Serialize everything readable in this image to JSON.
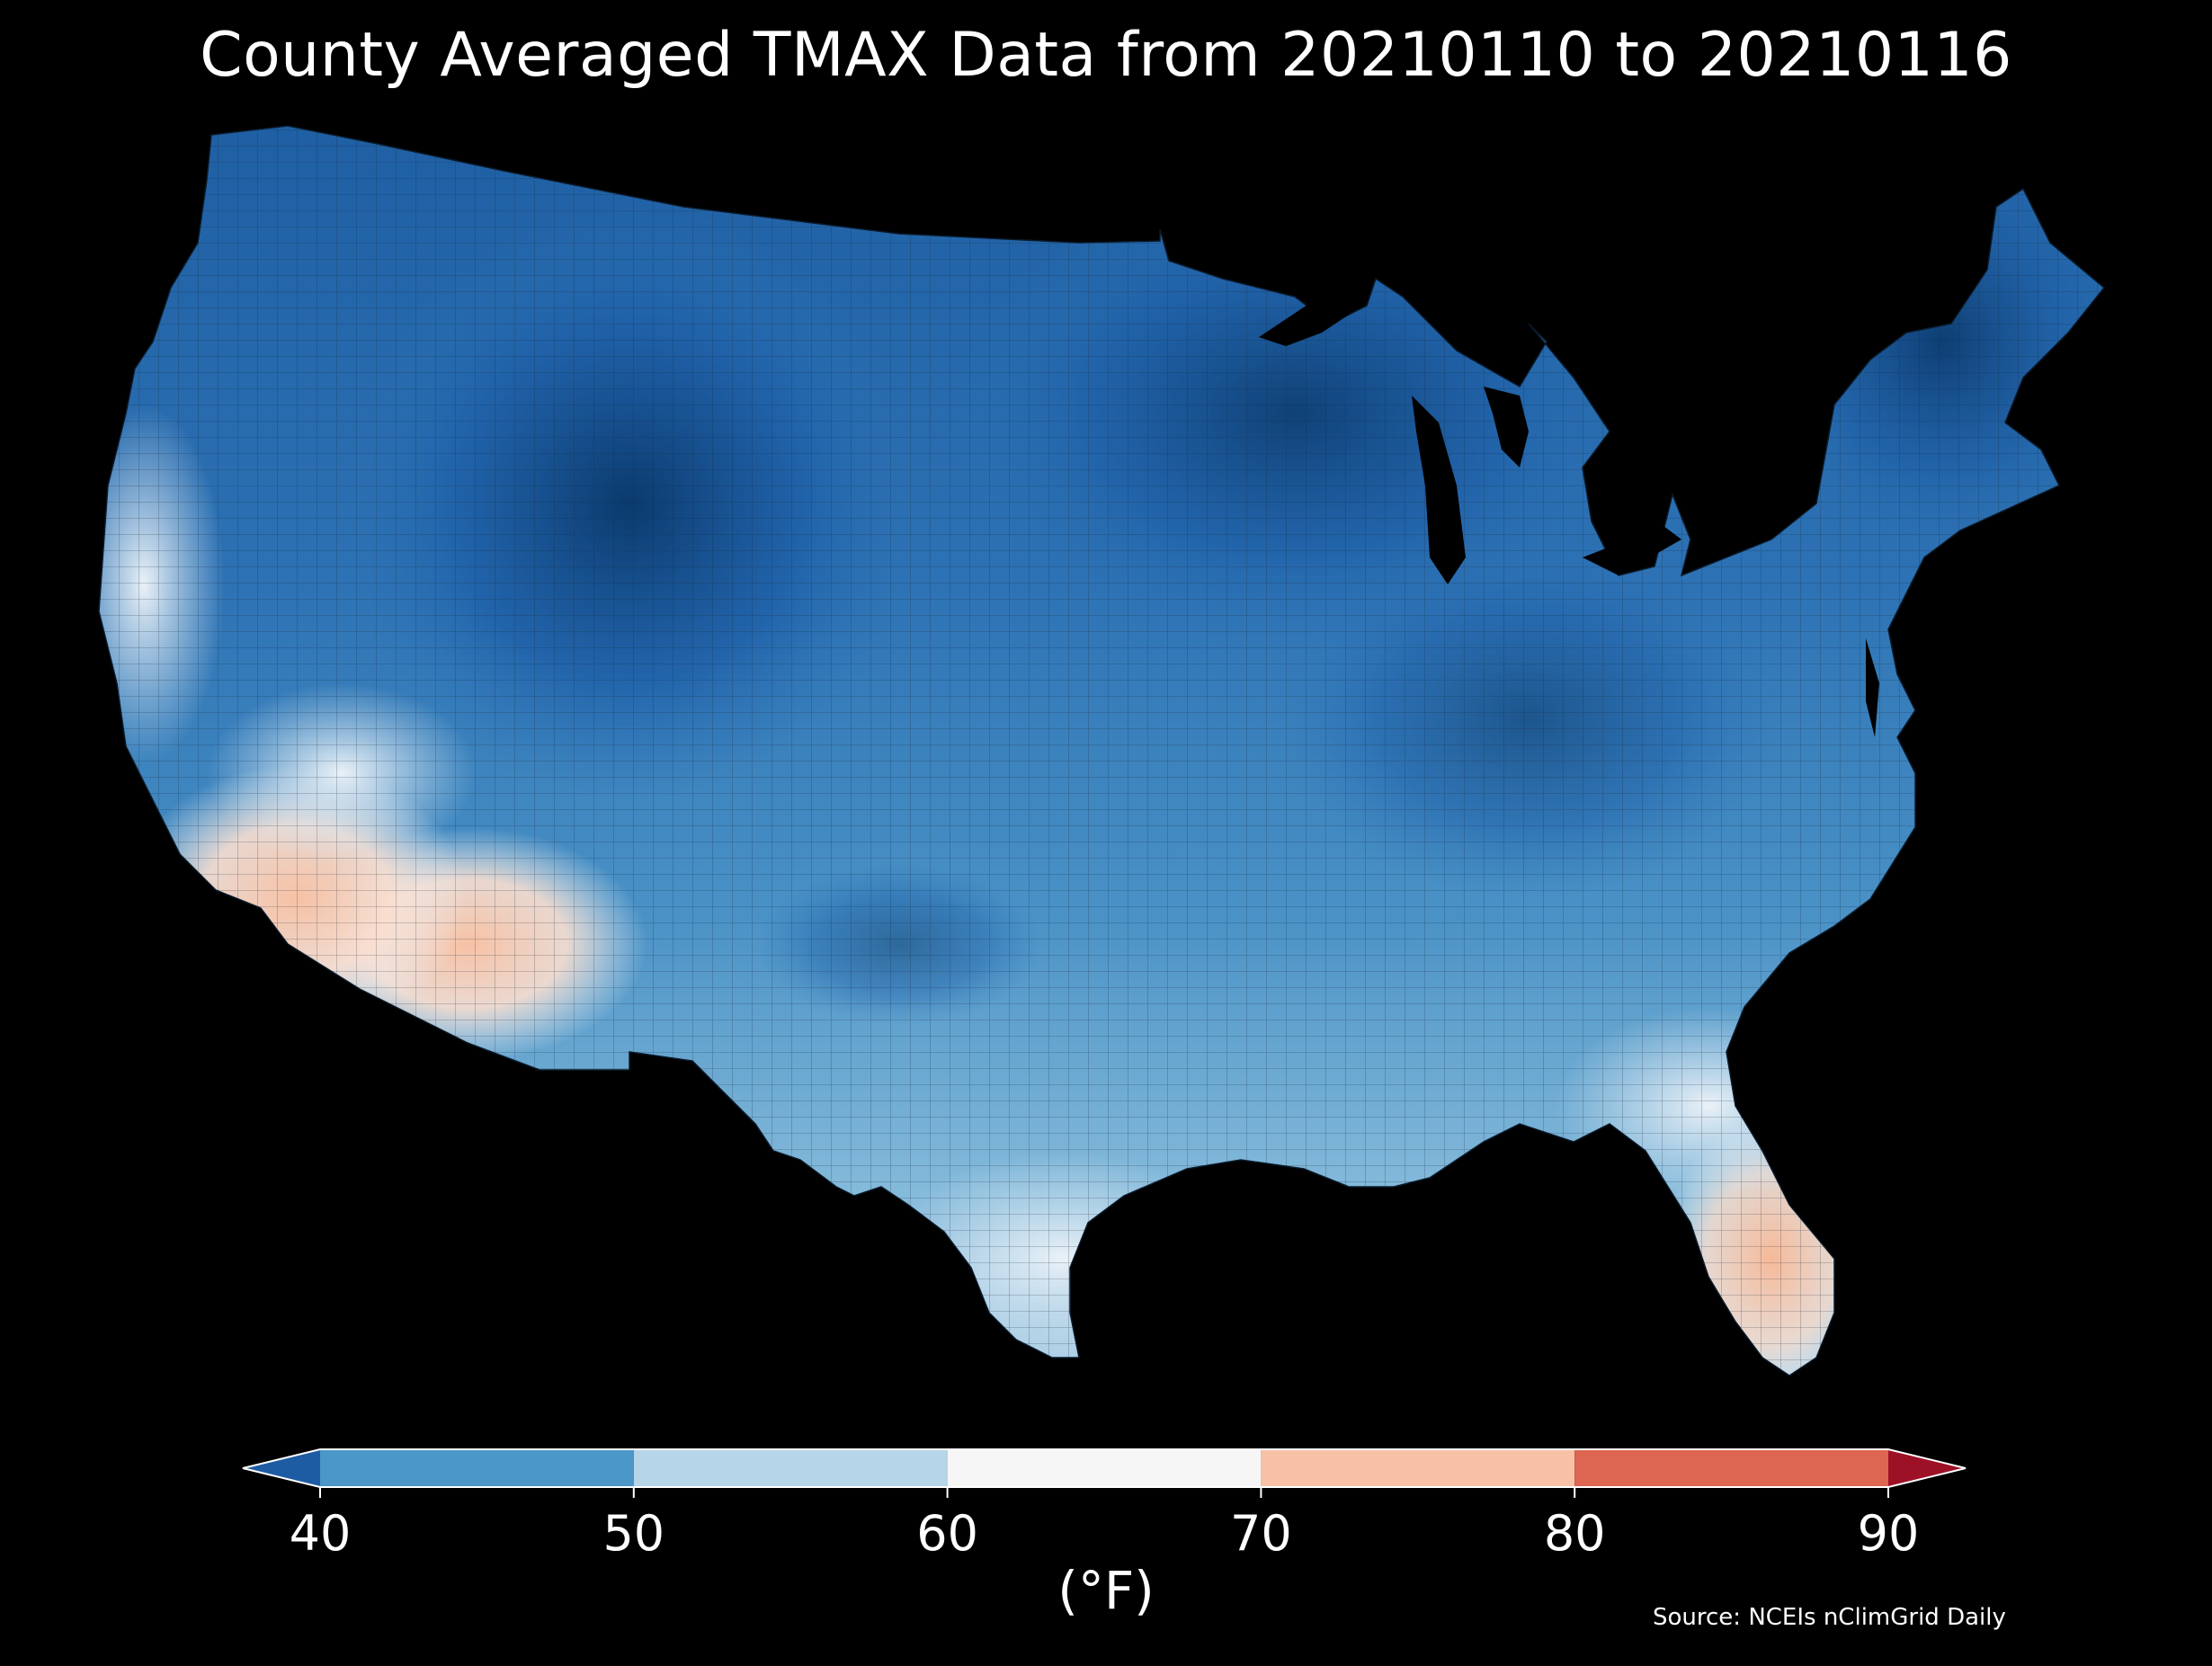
{
  "title": "County Averaged TMAX Data from 20210110 to 20210116",
  "legend": {
    "unit": "(°F)",
    "ticks": [
      "40",
      "50",
      "60",
      "70",
      "80",
      "90"
    ],
    "bins": [
      {
        "from": 40,
        "to": 50,
        "color": "#4b97c8"
      },
      {
        "from": 50,
        "to": 60,
        "color": "#b6d5e8"
      },
      {
        "from": 60,
        "to": 70,
        "color": "#f6f6f6"
      },
      {
        "from": 70,
        "to": 80,
        "color": "#f8c1a6"
      },
      {
        "from": 80,
        "to": 90,
        "color": "#dd6652"
      }
    ],
    "under_color": "#1d5ca3",
    "over_color": "#9d1127"
  },
  "source": "Source: NCEIs nClimGrid Daily",
  "map": {
    "background": "#000000",
    "shading": "temperature",
    "county_line_color": "#1a1a1a"
  }
}
